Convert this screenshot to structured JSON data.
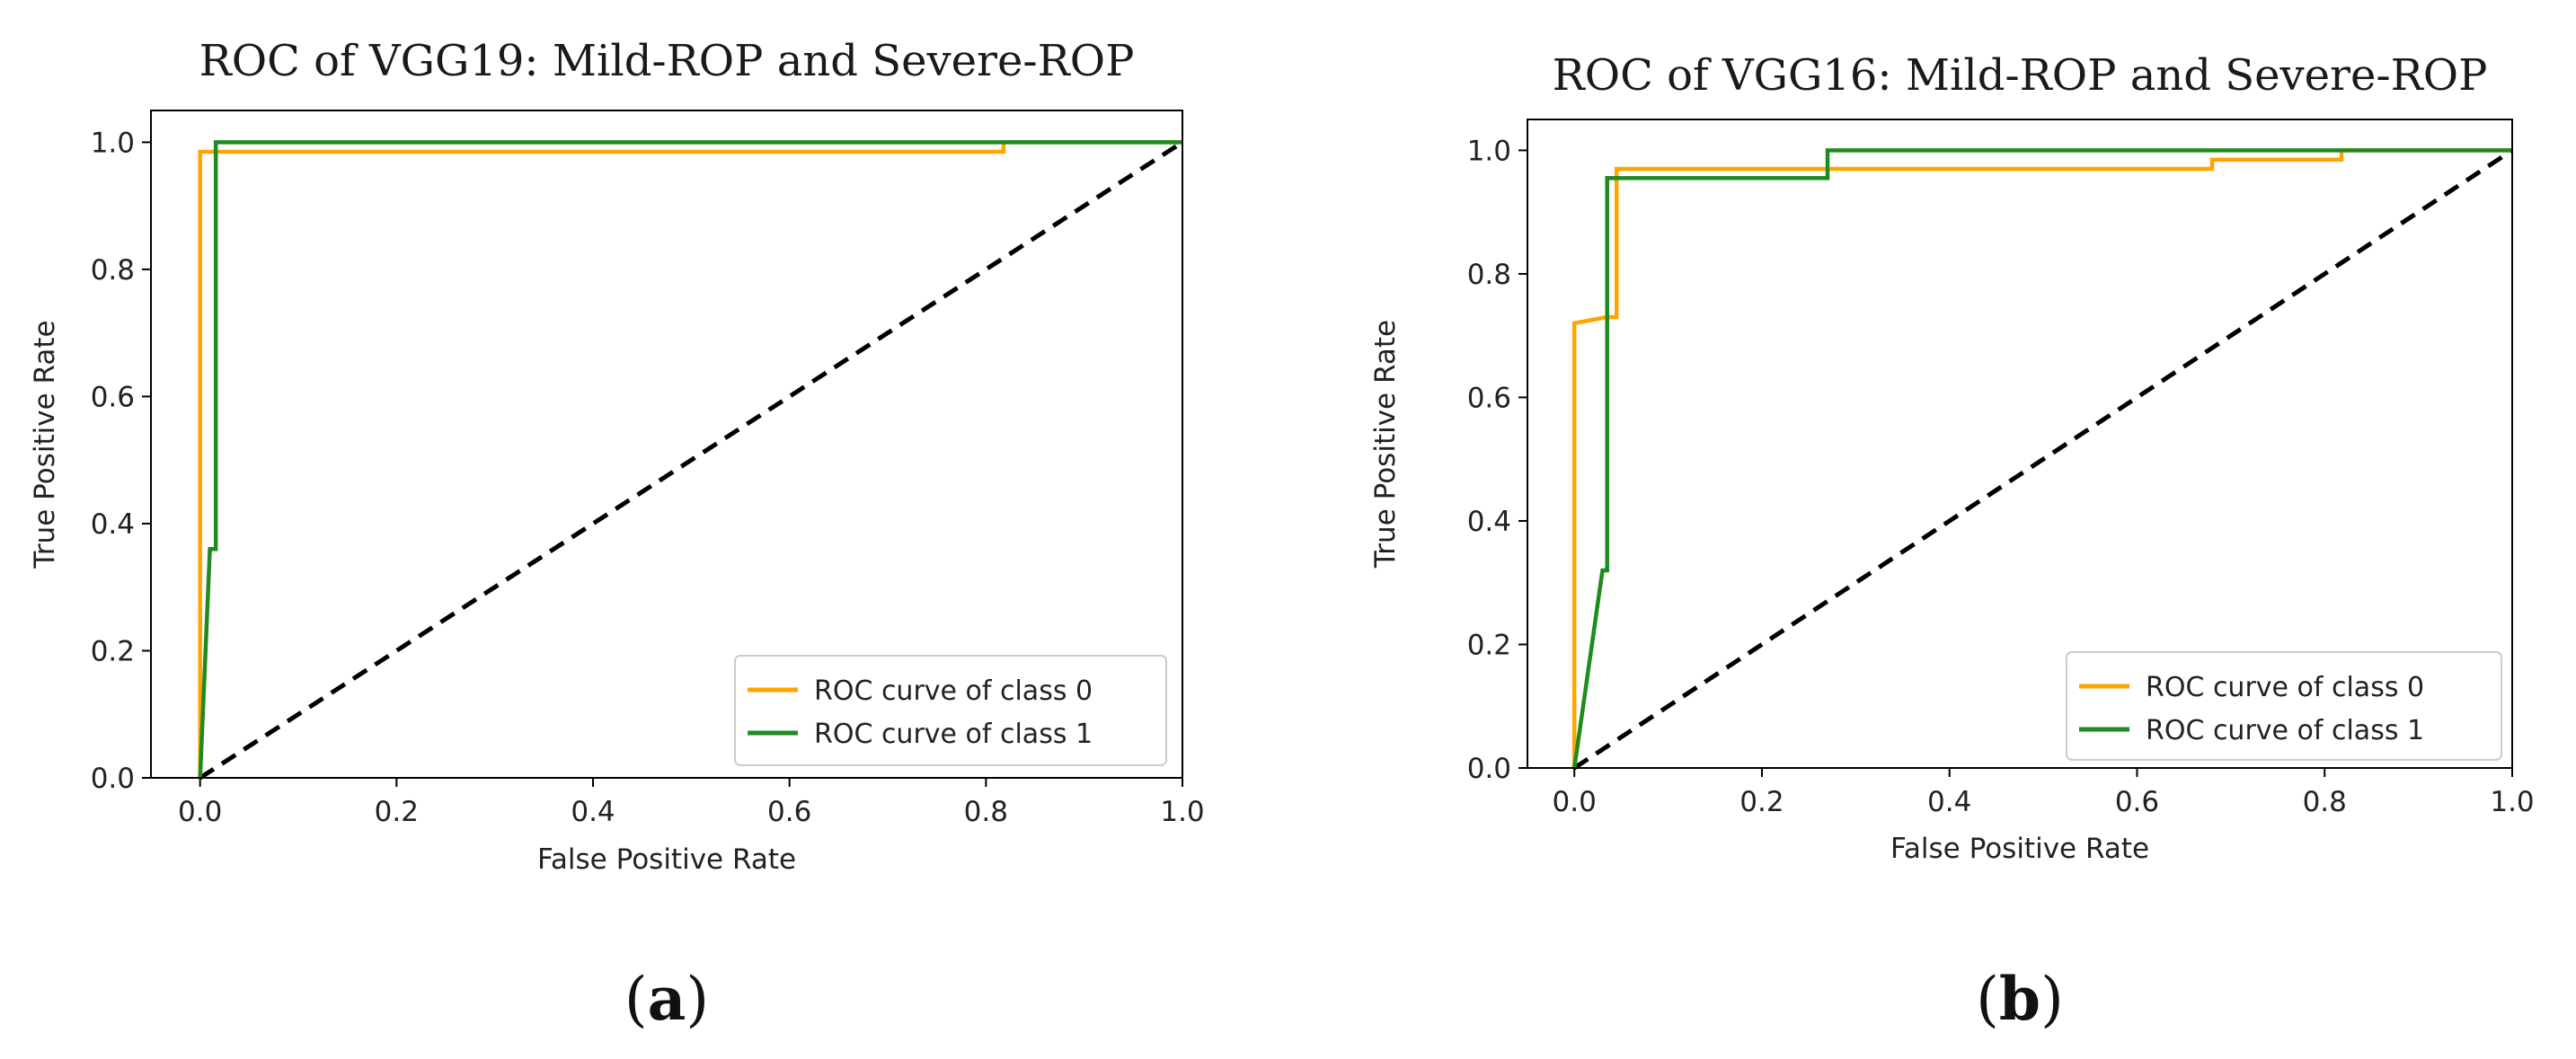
{
  "chart_data": [
    {
      "type": "line",
      "panel_label_open": "(",
      "panel_label_letter": "a",
      "panel_label_close": ")",
      "title": "ROC of VGG19: Mild-ROP and Severe-ROP",
      "xlabel": "False Positive Rate",
      "ylabel": "True Positive Rate",
      "xlim": [
        -0.05,
        1.0
      ],
      "ylim": [
        0.0,
        1.05
      ],
      "xticks": [
        0.0,
        0.2,
        0.4,
        0.6,
        0.8,
        1.0
      ],
      "xtick_labels": [
        "0.0",
        "0.2",
        "0.4",
        "0.6",
        "0.8",
        "1.0"
      ],
      "yticks": [
        0.0,
        0.2,
        0.4,
        0.6,
        0.8,
        1.0
      ],
      "ytick_labels": [
        "0.0",
        "0.2",
        "0.4",
        "0.6",
        "0.8",
        "1.0"
      ],
      "legend_position": "lower-right",
      "series": [
        {
          "name": "ROC curve of class 0",
          "color": "#FFA500",
          "x": [
            0.0,
            0.0,
            0.818,
            0.818,
            1.0
          ],
          "y": [
            0.0,
            0.985,
            0.985,
            1.0,
            1.0
          ]
        },
        {
          "name": "ROC curve of class 1",
          "color": "#1f8a1f",
          "x": [
            0.0,
            0.01,
            0.016,
            0.016,
            1.0
          ],
          "y": [
            0.0,
            0.36,
            0.36,
            1.0,
            1.0
          ]
        }
      ],
      "diagonal": {
        "x": [
          0.0,
          1.0
        ],
        "y": [
          0.0,
          1.0
        ],
        "color": "#000000",
        "style": "dashed"
      }
    },
    {
      "type": "line",
      "panel_label_open": "(",
      "panel_label_letter": "b",
      "panel_label_close": ")",
      "title": "ROC of VGG16: Mild-ROP and Severe-ROP",
      "xlabel": "False Positive Rate",
      "ylabel": "True Positive Rate",
      "xlim": [
        -0.05,
        1.0
      ],
      "ylim": [
        0.0,
        1.05
      ],
      "xticks": [
        0.0,
        0.2,
        0.4,
        0.6,
        0.8,
        1.0
      ],
      "xtick_labels": [
        "0.0",
        "0.2",
        "0.4",
        "0.6",
        "0.8",
        "1.0"
      ],
      "yticks": [
        0.0,
        0.2,
        0.4,
        0.6,
        0.8,
        1.0
      ],
      "ytick_labels": [
        "0.0",
        "0.2",
        "0.4",
        "0.6",
        "0.8",
        "1.0"
      ],
      "legend_position": "lower-right",
      "series": [
        {
          "name": "ROC curve of class 0",
          "color": "#FFA500",
          "x": [
            0.0,
            0.0,
            0.035,
            0.045,
            0.045,
            0.68,
            0.68,
            0.818,
            0.818,
            1.0
          ],
          "y": [
            0.0,
            0.72,
            0.73,
            0.73,
            0.97,
            0.97,
            0.985,
            0.985,
            1.0,
            1.0
          ]
        },
        {
          "name": "ROC curve of class 1",
          "color": "#1f8a1f",
          "x": [
            0.0,
            0.03,
            0.035,
            0.035,
            0.27,
            0.27,
            1.0
          ],
          "y": [
            0.0,
            0.32,
            0.32,
            0.955,
            0.955,
            1.0,
            1.0
          ]
        }
      ],
      "diagonal": {
        "x": [
          0.0,
          1.0
        ],
        "y": [
          0.0,
          1.0
        ],
        "color": "#000000",
        "style": "dashed"
      }
    }
  ]
}
